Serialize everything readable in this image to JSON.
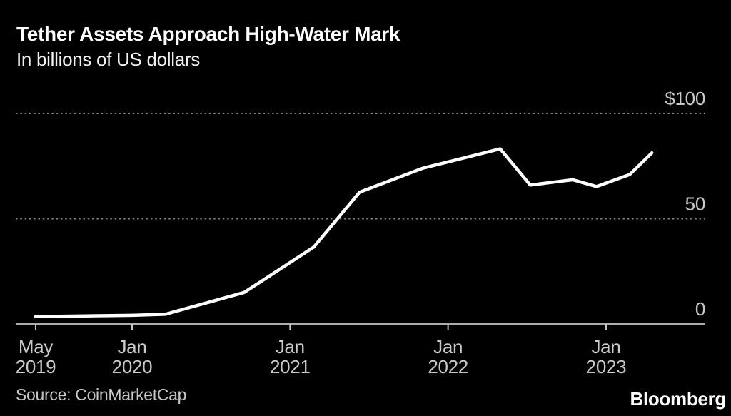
{
  "header": {
    "title": "Tether Assets Approach High-Water Mark",
    "subtitle": "In billions of US dollars"
  },
  "footer": {
    "source": "Source: CoinMarketCap",
    "brand": "Bloomberg"
  },
  "colors": {
    "background": "#000000",
    "line": "#ffffff",
    "grid": "#848484",
    "axis": "#c6c6c6",
    "labels": "#c9c9c9"
  },
  "chart_data": {
    "type": "line",
    "title": "Tether Assets Approach High-Water Mark",
    "subtitle": "In billions of US dollars",
    "unit": "billions of US dollars",
    "x": [
      2019.39,
      2020.0,
      2020.21,
      2020.71,
      2021.15,
      2021.44,
      2021.84,
      2022.33,
      2022.52,
      2022.79,
      2022.94,
      2023.15,
      2023.29
    ],
    "x_dates": [
      "May 2019",
      "Jan 2020",
      "Mar 2020",
      "Sep 2020",
      "Feb 2021",
      "Jun 2021",
      "Nov 2021",
      "May 2022",
      "Jul 2022",
      "Oct 2022",
      "Dec 2022",
      "Feb 2023",
      "Apr 2023"
    ],
    "series": [
      {
        "name": "Tether assets",
        "values": [
          3.5,
          4.1,
          4.6,
          15,
          36.5,
          62.6,
          74,
          83.2,
          66,
          68.5,
          65.3,
          71,
          81.3
        ]
      }
    ],
    "ylim": [
      0,
      100
    ],
    "xlim": [
      2019.39,
      2023.29
    ],
    "y_ticks": [
      {
        "label": "$100",
        "value": 100
      },
      {
        "label": "50",
        "value": 50
      },
      {
        "label": "0",
        "value": 0
      }
    ],
    "x_ticks": [
      {
        "line1": "May",
        "line2": "2019",
        "t": 2019.39
      },
      {
        "line1": "Jan",
        "line2": "2020",
        "t": 2020.0
      },
      {
        "line1": "Jan",
        "line2": "2021",
        "t": 2021.0
      },
      {
        "line1": "Jan",
        "line2": "2022",
        "t": 2022.0
      },
      {
        "line1": "Jan",
        "line2": "2023",
        "t": 2023.0
      }
    ],
    "grid": "horizontal dotted",
    "legend": "none"
  }
}
